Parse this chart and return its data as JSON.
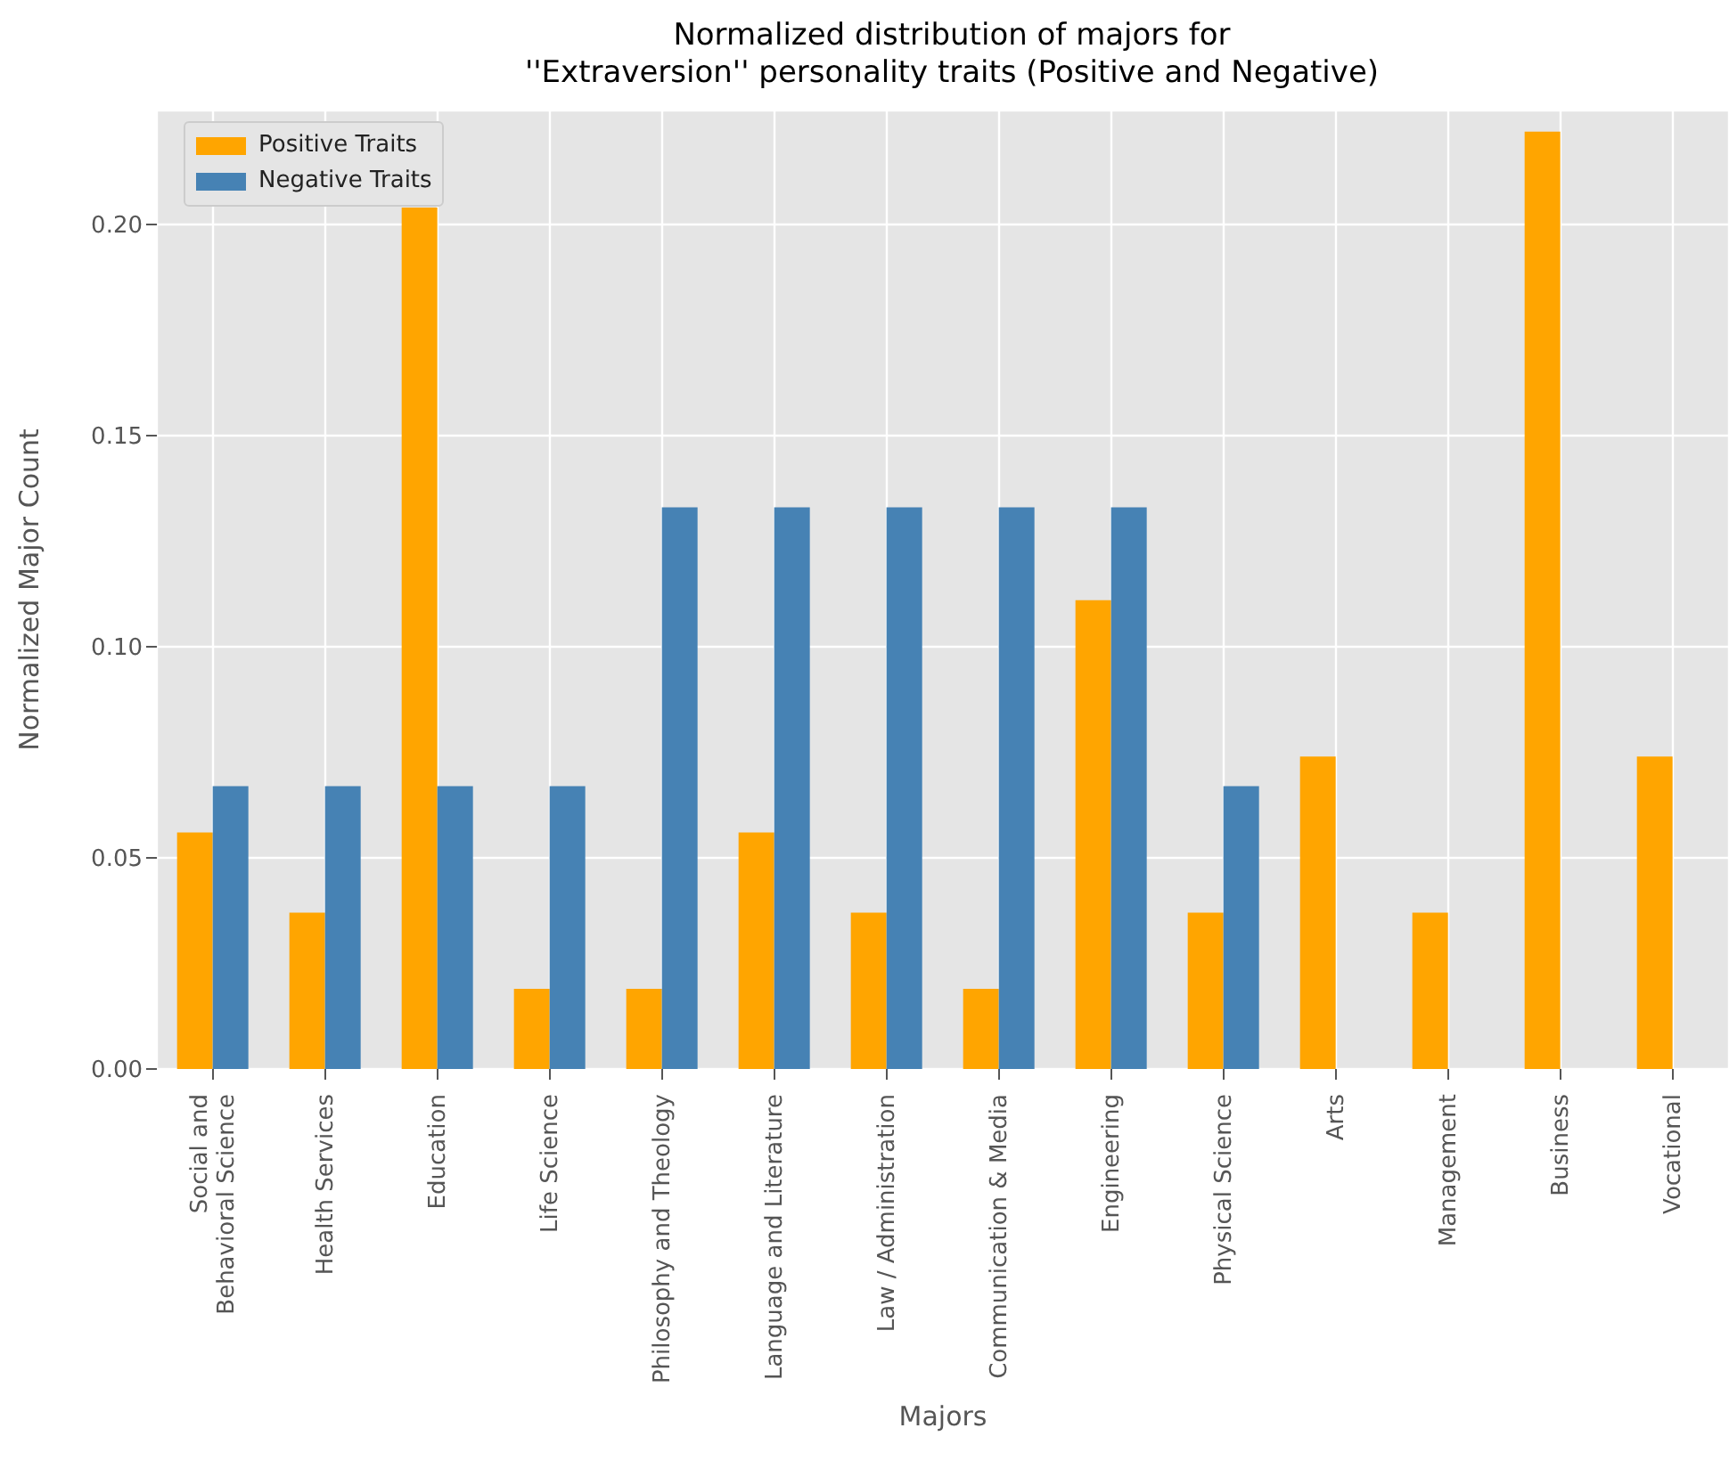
{
  "chart_data": {
    "type": "bar",
    "title": "Normalized distribution of majors for\n''Extraversion'' personality traits (Positive and Negative)",
    "xlabel": "Majors",
    "ylabel": "Normalized Major Count",
    "categories": [
      "Social and\nBehavioral Science",
      "Health Services",
      "Education",
      "Life Science",
      "Philosophy and Theology",
      "Language and Literature",
      "Law / Administration",
      "Communication & Media",
      "Engineering",
      "Physical Science",
      "Arts",
      "Management",
      "Business",
      "Vocational"
    ],
    "series": [
      {
        "name": "Positive Traits",
        "color": "#ffa500",
        "values": [
          0.056,
          0.037,
          0.204,
          0.019,
          0.019,
          0.056,
          0.037,
          0.019,
          0.111,
          0.037,
          0.074,
          0.037,
          0.222,
          0.074
        ]
      },
      {
        "name": "Negative Traits",
        "color": "#4682b4",
        "values": [
          0.067,
          0.067,
          0.067,
          0.067,
          0.133,
          0.133,
          0.133,
          0.133,
          0.133,
          0.067,
          0,
          0,
          0,
          0
        ]
      }
    ],
    "ylim": [
      0,
      0.227
    ],
    "yticks": [
      {
        "value": 0,
        "label": "0.00"
      },
      {
        "value": 0.05,
        "label": "0.05"
      },
      {
        "value": 0.1,
        "label": "0.10"
      },
      {
        "value": 0.15,
        "label": "0.15"
      },
      {
        "value": 0.2,
        "label": "0.20"
      }
    ],
    "grid": true,
    "legend": "top left"
  }
}
